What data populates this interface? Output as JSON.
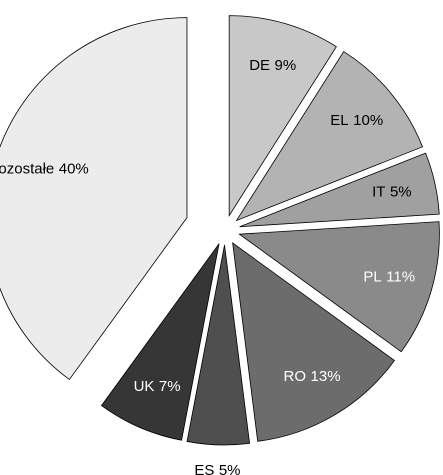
{
  "chart_data": {
    "type": "pie",
    "categories": [
      "DE",
      "EL",
      "IT",
      "PL",
      "RO",
      "ES",
      "UK",
      "Pozostałe"
    ],
    "values": [
      9,
      10,
      5,
      11,
      13,
      5,
      7,
      40
    ],
    "value_labels": [
      "9%",
      "10%",
      "5%",
      "11%",
      "13%",
      "5%",
      "7%",
      "40%"
    ],
    "colors": [
      "#c8c8c8",
      "#b3b3b3",
      "#a0a0a0",
      "#8a8a8a",
      "#6c6c6c",
      "#4f4f4f",
      "#363636",
      "#ececec"
    ]
  }
}
